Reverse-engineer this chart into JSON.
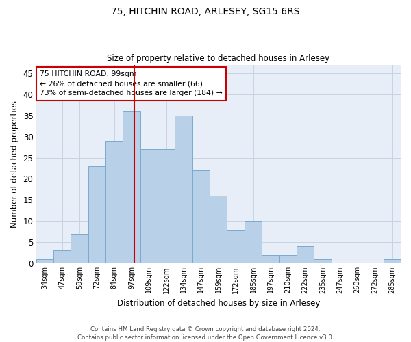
{
  "title1": "75, HITCHIN ROAD, ARLESEY, SG15 6RS",
  "title2": "Size of property relative to detached houses in Arlesey",
  "xlabel": "Distribution of detached houses by size in Arlesey",
  "ylabel": "Number of detached properties",
  "categories": [
    "34sqm",
    "47sqm",
    "59sqm",
    "72sqm",
    "84sqm",
    "97sqm",
    "109sqm",
    "122sqm",
    "134sqm",
    "147sqm",
    "159sqm",
    "172sqm",
    "185sqm",
    "197sqm",
    "210sqm",
    "222sqm",
    "235sqm",
    "247sqm",
    "260sqm",
    "272sqm",
    "285sqm"
  ],
  "values": [
    1,
    3,
    7,
    23,
    29,
    36,
    27,
    27,
    35,
    22,
    16,
    8,
    10,
    2,
    2,
    4,
    1,
    0,
    0,
    0,
    1
  ],
  "bar_color": "#b8d0e8",
  "bar_edge_color": "#7aaacf",
  "property_label": "75 HITCHIN ROAD: 99sqm",
  "annotation_line1": "← 26% of detached houses are smaller (66)",
  "annotation_line2": "73% of semi-detached houses are larger (184) →",
  "vline_color": "#cc0000",
  "annotation_box_edge": "#cc0000",
  "ylim": [
    0,
    47
  ],
  "yticks": [
    0,
    5,
    10,
    15,
    20,
    25,
    30,
    35,
    40,
    45
  ],
  "grid_color": "#c8d4e4",
  "bg_color": "#e8eef8",
  "footer1": "Contains HM Land Registry data © Crown copyright and database right 2024.",
  "footer2": "Contains public sector information licensed under the Open Government Licence v3.0.",
  "vline_x_idx": 5.5
}
